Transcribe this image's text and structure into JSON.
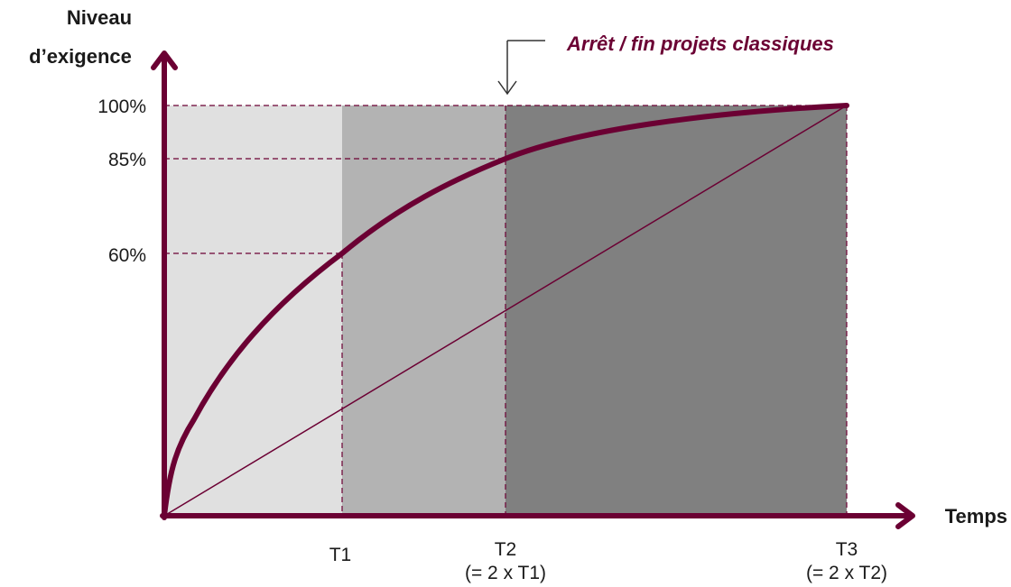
{
  "colors": {
    "accent": "#6b0033",
    "zone_1": "#e0e0e0",
    "zone_2": "#b3b3b3",
    "zone_3": "#808080"
  },
  "y_axis": {
    "title_line1": "Niveau",
    "title_line2": "d’exigence",
    "ticks": [
      "100%",
      "85%",
      "60%"
    ]
  },
  "x_axis": {
    "title": "Temps",
    "ticks": [
      {
        "label": "T1",
        "sub": ""
      },
      {
        "label": "T2",
        "sub": "(= 2 x T1)"
      },
      {
        "label": "T3",
        "sub": "(= 2 x T2)"
      }
    ]
  },
  "annotation": "Arrêt / fin projets classiques",
  "chart_data": {
    "type": "line",
    "ylabel": "Niveau d’exigence",
    "xlabel": "Temps",
    "x_categories": [
      "0",
      "T1",
      "T2",
      "T3"
    ],
    "series": [
      {
        "values": [
          0,
          60,
          85,
          100
        ]
      },
      {
        "values": [
          0,
          25,
          50,
          100
        ]
      }
    ],
    "zones": [
      {
        "from": "0",
        "to": "T1"
      },
      {
        "from": "T1",
        "to": "T2"
      },
      {
        "from": "T2",
        "to": "T3"
      }
    ],
    "ylim": [
      0,
      100
    ]
  }
}
